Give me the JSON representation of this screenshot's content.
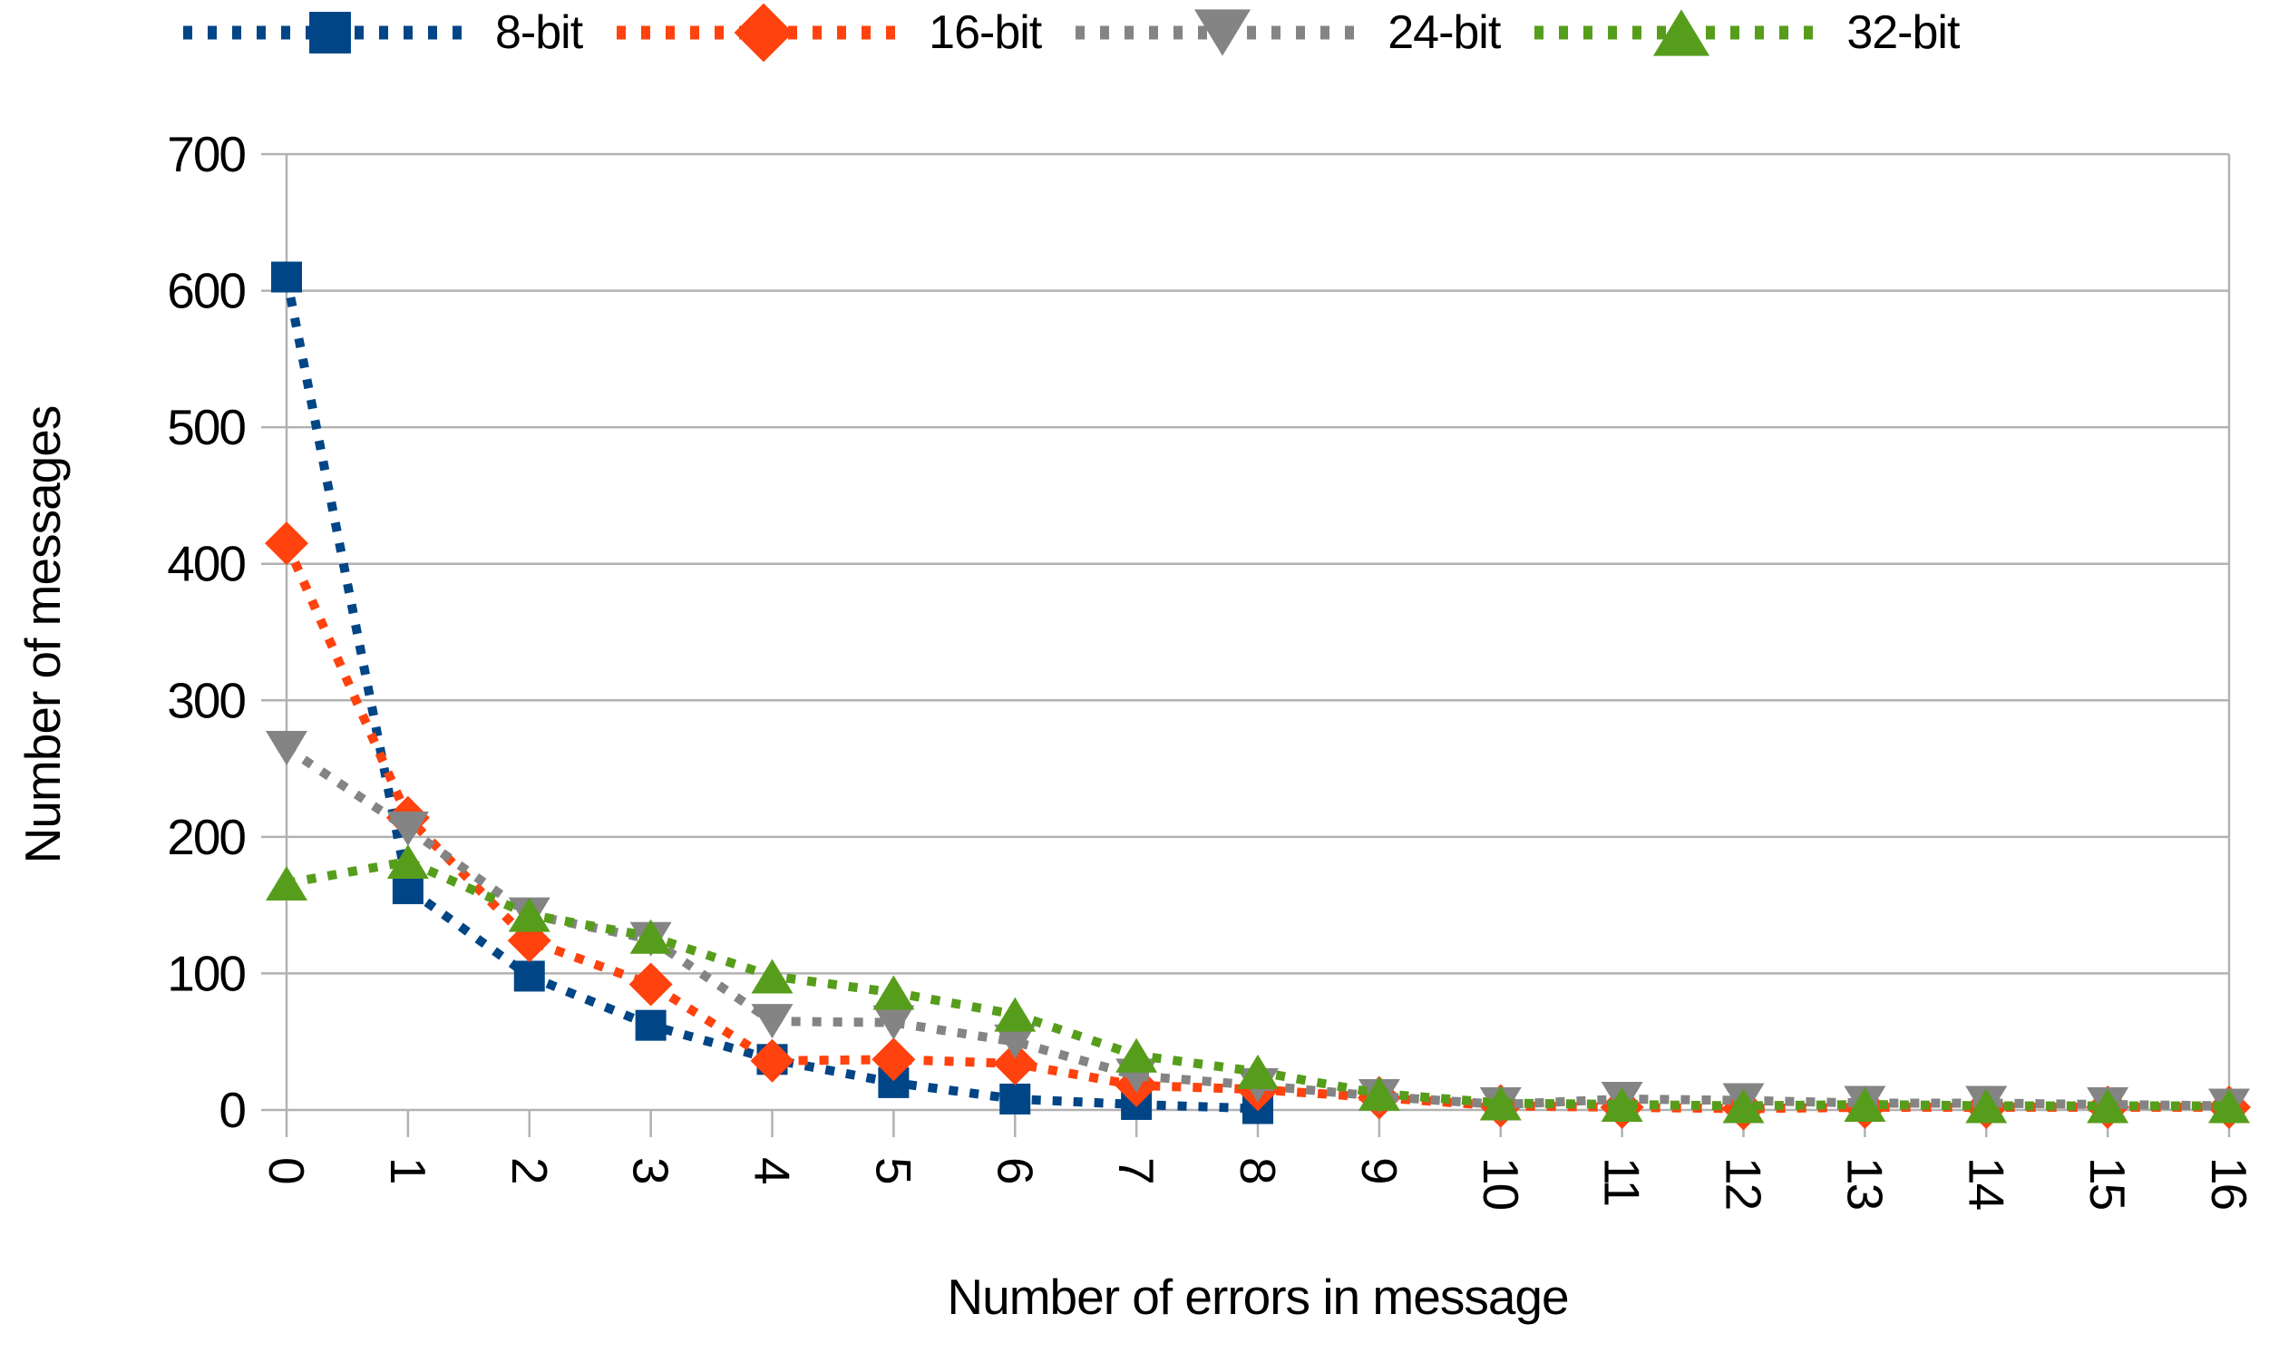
{
  "chart_data": {
    "type": "line",
    "title": "",
    "xlabel": "Number of errors in message",
    "ylabel": "Number of messages",
    "xlim": [
      0,
      16
    ],
    "ylim": [
      0,
      700
    ],
    "x_ticks": [
      0,
      1,
      2,
      3,
      4,
      5,
      6,
      7,
      8,
      9,
      10,
      11,
      12,
      13,
      14,
      15,
      16
    ],
    "y_ticks": [
      0,
      100,
      200,
      300,
      400,
      500,
      600,
      700
    ],
    "grid": "horizontal-only",
    "legend_position": "top",
    "line_style": "dotted",
    "background_color": "#ffffff",
    "grid_color": "#b2b2b2",
    "text_color": "#000000",
    "series": [
      {
        "name": "8-bit",
        "color": "#004586",
        "marker": "square",
        "x": [
          0,
          1,
          2,
          3,
          4,
          5,
          6,
          7,
          8
        ],
        "values": [
          610,
          162,
          98,
          62,
          37,
          20,
          8,
          4,
          1
        ]
      },
      {
        "name": "16-bit",
        "color": "#ff420e",
        "marker": "diamond",
        "x": [
          0,
          1,
          2,
          3,
          4,
          5,
          6,
          7,
          8,
          9,
          10,
          11,
          12,
          13,
          14,
          15,
          16
        ],
        "values": [
          415,
          214,
          124,
          92,
          36,
          37,
          34,
          18,
          15,
          9,
          3,
          2,
          1,
          2,
          2,
          2,
          2
        ]
      },
      {
        "name": "24-bit",
        "color": "#848484",
        "marker": "triangle-down",
        "x": [
          0,
          1,
          2,
          3,
          4,
          5,
          6,
          7,
          8,
          9,
          10,
          11,
          12,
          13,
          14,
          15,
          16
        ],
        "values": [
          265,
          206,
          143,
          125,
          65,
          64,
          50,
          25,
          18,
          10,
          4,
          8,
          7,
          5,
          5,
          4,
          3
        ]
      },
      {
        "name": "32-bit",
        "color": "#579d1c",
        "marker": "triangle-up",
        "x": [
          0,
          1,
          2,
          3,
          4,
          5,
          6,
          7,
          8,
          9,
          10,
          11,
          12,
          13,
          14,
          15,
          16
        ],
        "values": [
          166,
          182,
          143,
          127,
          98,
          86,
          70,
          40,
          28,
          12,
          5,
          4,
          3,
          4,
          3,
          3,
          3
        ]
      }
    ]
  }
}
